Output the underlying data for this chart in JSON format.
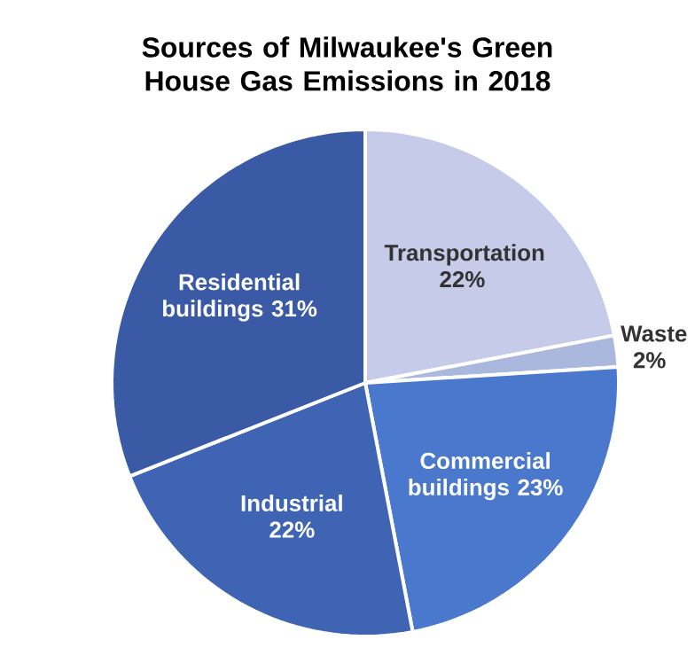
{
  "chart_data": {
    "type": "pie",
    "title": "Sources of Milwaukee's Green House Gas Emissions in 2018",
    "categories": [
      "Transportation",
      "Waste",
      "Commercial buildings",
      "Industrial",
      "Residential buildings"
    ],
    "values": [
      22,
      2,
      23,
      22,
      31
    ],
    "value_labels": [
      "22%",
      "2%",
      "23%",
      "22%",
      "31%"
    ],
    "colors": [
      "#c5cbe8",
      "#a9b8dc",
      "#4a78cc",
      "#3f64b4",
      "#3b5aa6"
    ]
  }
}
